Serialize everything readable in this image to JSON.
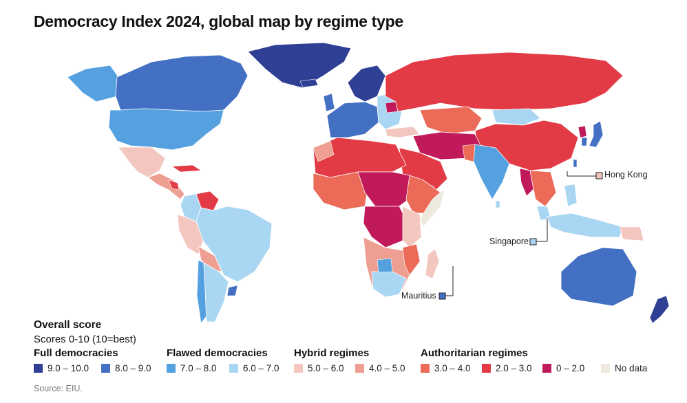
{
  "title": "Democracy Index 2024, global map by regime type",
  "colors": {
    "full_9_10": "#2f3f94",
    "full_8_9": "#4470c4",
    "flawed_7_8": "#55a1e0",
    "flawed_6_7": "#a9d6f2",
    "hybrid_5_6": "#f4c6c0",
    "hybrid_4_5": "#ee9f92",
    "auth_3_4": "#ec6a58",
    "auth_2_3": "#e33b45",
    "auth_0_2": "#c11a5a",
    "no_data": "#ede9dd"
  },
  "callouts": {
    "hong_kong": "Hong Kong",
    "singapore": "Singapore",
    "mauritius": "Mauritius"
  },
  "legend": {
    "heading": "Overall score",
    "subheading": "Scores 0-10 (10=best)",
    "categories": [
      {
        "label": "Full democracies",
        "items": [
          {
            "label": "9.0 – 10.0",
            "color": "#2f3f94"
          },
          {
            "label": "8.0 – 9.0",
            "color": "#4470c4"
          }
        ]
      },
      {
        "label": "Flawed democracies",
        "items": [
          {
            "label": "7.0 – 8.0",
            "color": "#55a1e0"
          },
          {
            "label": "6.0 – 7.0",
            "color": "#a9d6f2"
          }
        ]
      },
      {
        "label": "Hybrid regimes",
        "items": [
          {
            "label": "5.0 – 6.0",
            "color": "#f4c6c0"
          },
          {
            "label": "4.0 – 5.0",
            "color": "#ee9f92"
          }
        ]
      },
      {
        "label": "Authoritarian regimes",
        "items": [
          {
            "label": "3.0 – 4.0",
            "color": "#ec6a58"
          },
          {
            "label": "2.0 – 3.0",
            "color": "#e33b45"
          },
          {
            "label": "0 – 2.0",
            "color": "#c11a5a"
          },
          {
            "label": "No data",
            "color": "#ede9dd"
          }
        ]
      }
    ]
  },
  "source": "Source: EIU."
}
